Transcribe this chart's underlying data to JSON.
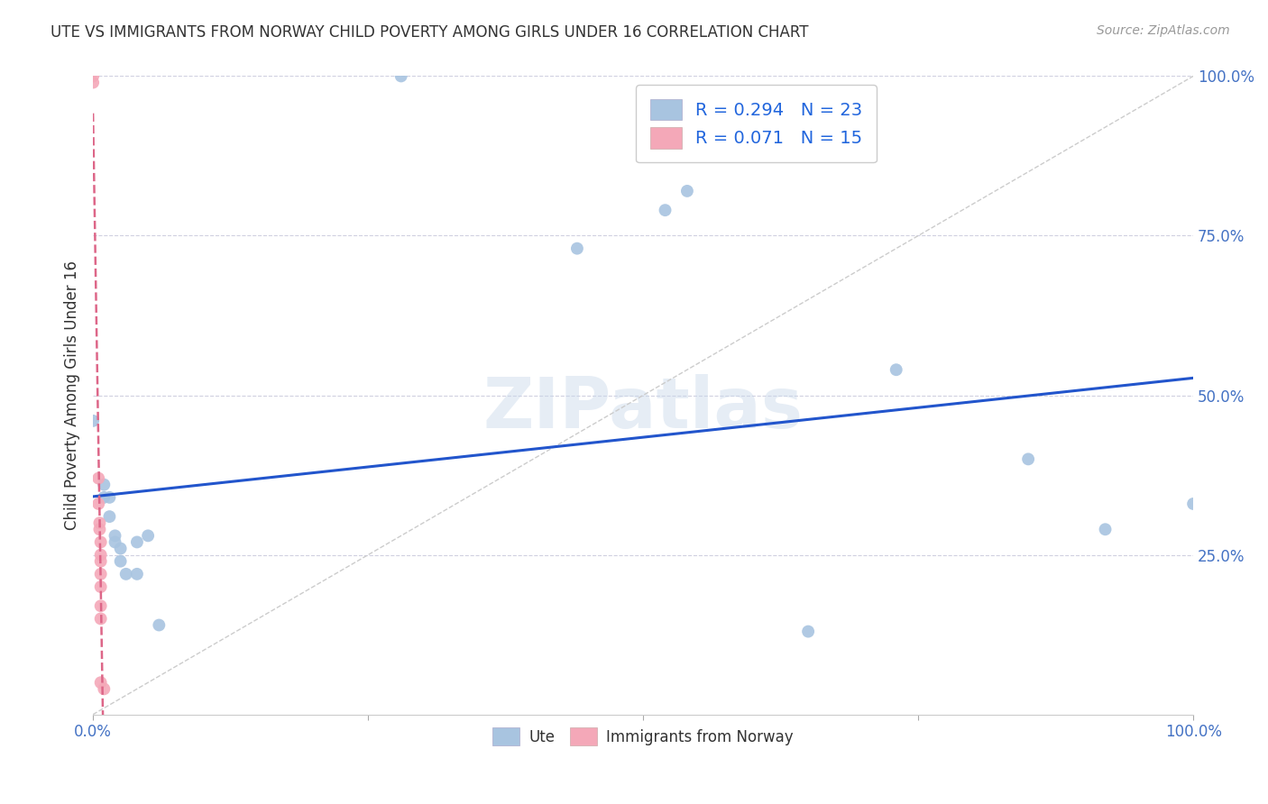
{
  "title": "UTE VS IMMIGRANTS FROM NORWAY CHILD POVERTY AMONG GIRLS UNDER 16 CORRELATION CHART",
  "source": "Source: ZipAtlas.com",
  "ylabel": "Child Poverty Among Girls Under 16",
  "watermark": "ZIPatlas",
  "ute_R": 0.294,
  "ute_N": 23,
  "norway_R": 0.071,
  "norway_N": 15,
  "ute_color": "#a8c4e0",
  "norway_color": "#f4a8b8",
  "ute_line_color": "#2255cc",
  "norway_line_color": "#dd6688",
  "tick_color": "#4472c4",
  "ute_points": [
    [
      0.0,
      0.46
    ],
    [
      0.01,
      0.36
    ],
    [
      0.01,
      0.34
    ],
    [
      0.015,
      0.34
    ],
    [
      0.015,
      0.31
    ],
    [
      0.02,
      0.28
    ],
    [
      0.02,
      0.27
    ],
    [
      0.025,
      0.26
    ],
    [
      0.025,
      0.24
    ],
    [
      0.03,
      0.22
    ],
    [
      0.04,
      0.27
    ],
    [
      0.04,
      0.22
    ],
    [
      0.05,
      0.28
    ],
    [
      0.06,
      0.14
    ],
    [
      0.28,
      1.0
    ],
    [
      0.44,
      0.73
    ],
    [
      0.52,
      0.79
    ],
    [
      0.54,
      0.82
    ],
    [
      0.65,
      0.13
    ],
    [
      0.73,
      0.54
    ],
    [
      0.85,
      0.4
    ],
    [
      0.92,
      0.29
    ],
    [
      1.0,
      0.33
    ]
  ],
  "norway_points": [
    [
      0.0,
      1.0
    ],
    [
      0.0,
      0.99
    ],
    [
      0.005,
      0.37
    ],
    [
      0.005,
      0.33
    ],
    [
      0.006,
      0.3
    ],
    [
      0.006,
      0.29
    ],
    [
      0.007,
      0.27
    ],
    [
      0.007,
      0.25
    ],
    [
      0.007,
      0.24
    ],
    [
      0.007,
      0.22
    ],
    [
      0.007,
      0.2
    ],
    [
      0.007,
      0.17
    ],
    [
      0.007,
      0.15
    ],
    [
      0.007,
      0.05
    ],
    [
      0.01,
      0.04
    ]
  ],
  "xlim": [
    0.0,
    1.0
  ],
  "ylim": [
    0.0,
    1.0
  ],
  "x_ticks": [
    0.0,
    0.25,
    0.5,
    0.75,
    1.0
  ],
  "x_tick_labels": [
    "0.0%",
    "",
    "",
    "",
    "100.0%"
  ],
  "y_ticks": [
    0.25,
    0.5,
    0.75,
    1.0
  ],
  "y_tick_labels": [
    "25.0%",
    "50.0%",
    "75.0%",
    "100.0%"
  ],
  "grid_color": "#d0d0e0",
  "marker_size": 100,
  "background_color": "#ffffff",
  "legend_R_color": "#2266dd",
  "title_color": "#333333",
  "source_color": "#999999"
}
